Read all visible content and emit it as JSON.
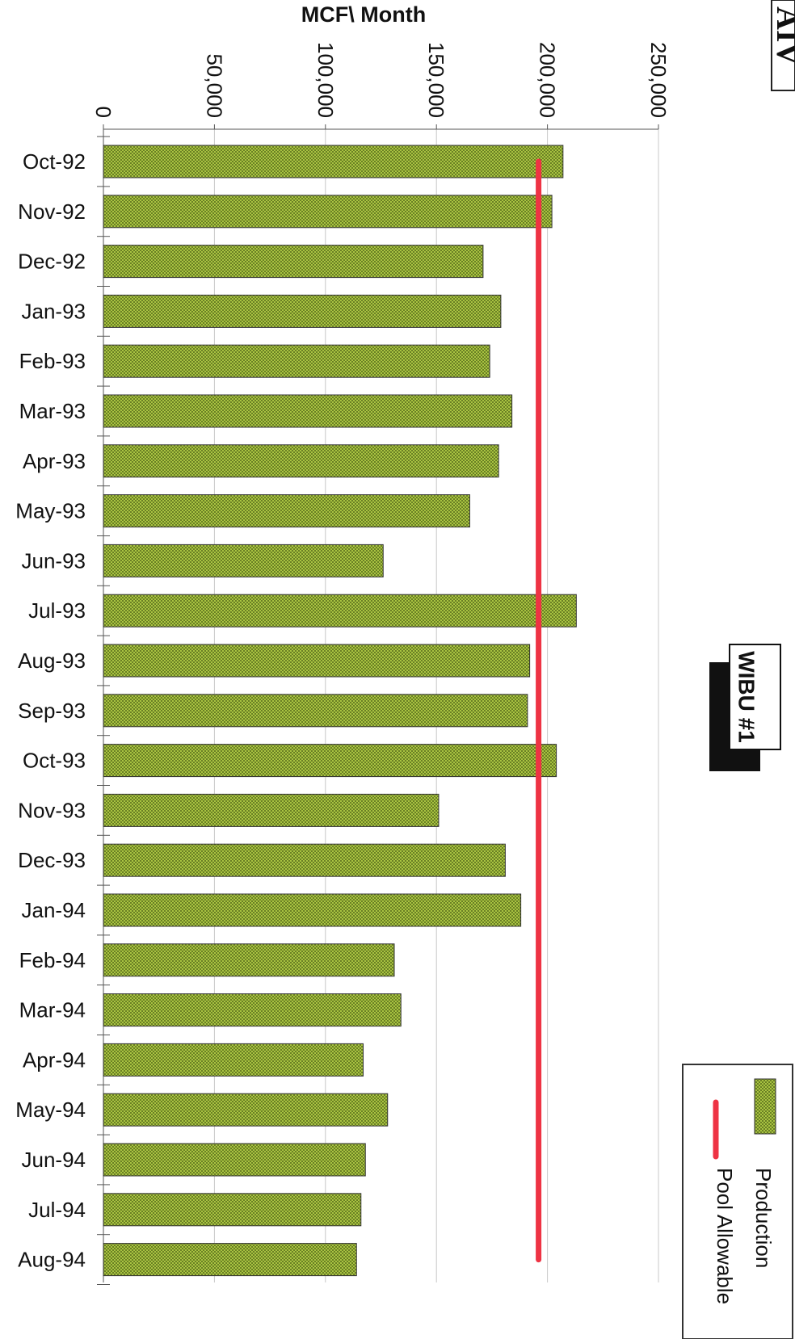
{
  "corner_fragment": "AIV",
  "badge": "WIBU #1",
  "chart_data": {
    "type": "bar",
    "orientation": "horizontal",
    "title": "",
    "value_axis_title": "MCF\\ Month",
    "value_ticks": [
      "0",
      "50,000",
      "100,000",
      "150,000",
      "200,000",
      "250,000"
    ],
    "ylim": [
      0,
      250000
    ],
    "grid": true,
    "legend_position": "bottom-right",
    "categories": [
      "Oct-92",
      "Nov-92",
      "Dec-92",
      "Jan-93",
      "Feb-93",
      "Mar-93",
      "Apr-93",
      "May-93",
      "Jun-93",
      "Jul-93",
      "Aug-93",
      "Sep-93",
      "Oct-93",
      "Nov-93",
      "Dec-93",
      "Jan-94",
      "Feb-94",
      "Mar-94",
      "Apr-94",
      "May-94",
      "Jun-94",
      "Jul-94",
      "Aug-94"
    ],
    "series": [
      {
        "name": "Production",
        "kind": "bar",
        "color": "#b5d147",
        "values": [
          207000,
          202000,
          171000,
          179000,
          174000,
          184000,
          178000,
          165000,
          126000,
          213000,
          192000,
          191000,
          204000,
          151000,
          181000,
          188000,
          131000,
          134000,
          117000,
          128000,
          118000,
          116000,
          114000
        ]
      },
      {
        "name": "Pool Allowable",
        "kind": "line",
        "color": "#ee3344",
        "values": [
          196000,
          196000,
          196000,
          196000,
          196000,
          196000,
          196000,
          196000,
          196000,
          196000,
          196000,
          196000,
          196000,
          196000,
          196000,
          196000,
          196000,
          196000,
          196000,
          196000,
          196000,
          196000,
          196000
        ]
      }
    ]
  }
}
